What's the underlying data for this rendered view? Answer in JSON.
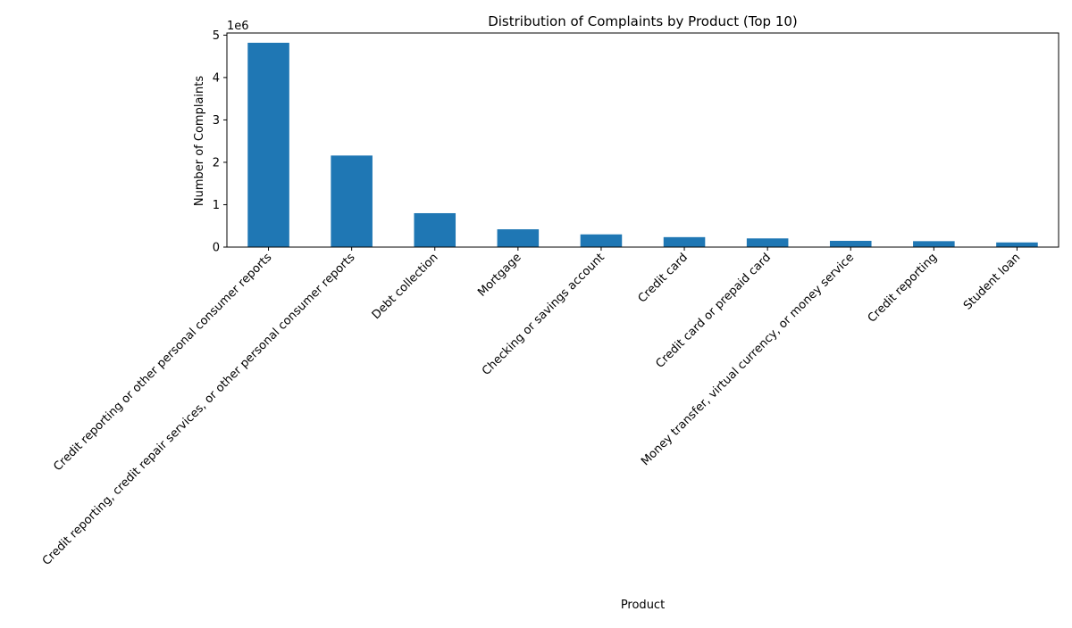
{
  "chart_data": {
    "type": "bar",
    "title": "Distribution of Complaints by Product (Top 10)",
    "xlabel": "Product",
    "ylabel": "Number of Complaints",
    "offset_label": "1e6",
    "categories": [
      "Credit reporting or other personal consumer reports",
      "Credit reporting, credit repair services, or other personal consumer reports",
      "Debt collection",
      "Mortgage",
      "Checking or savings account",
      "Credit card",
      "Credit card or prepaid card",
      "Money transfer, virtual currency, or money service",
      "Credit reporting",
      "Student loan"
    ],
    "values": [
      4820000,
      2160000,
      800000,
      420000,
      300000,
      235000,
      205000,
      148000,
      140000,
      110000
    ],
    "ylim": [
      0,
      5050000
    ],
    "yticks": [
      0,
      1000000,
      2000000,
      3000000,
      4000000,
      5000000
    ],
    "ytick_labels": [
      "0",
      "1",
      "2",
      "3",
      "4",
      "5"
    ],
    "bar_color": "#1f77b4",
    "grid": false,
    "legend": "none"
  }
}
